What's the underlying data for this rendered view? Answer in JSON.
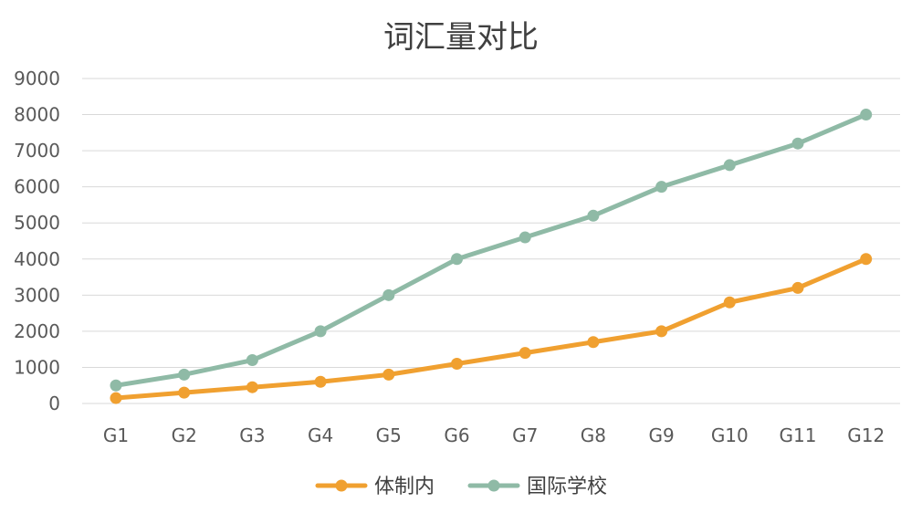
{
  "chart_data": {
    "type": "line",
    "title": "词汇量对比",
    "xlabel": "",
    "ylabel": "",
    "categories": [
      "G1",
      "G2",
      "G3",
      "G4",
      "G5",
      "G6",
      "G7",
      "G8",
      "G9",
      "G10",
      "G11",
      "G12"
    ],
    "y_ticks": [
      "0",
      "1000",
      "2000",
      "3000",
      "4000",
      "5000",
      "6000",
      "7000",
      "8000",
      "9000"
    ],
    "ylim": [
      0,
      9000
    ],
    "grid": true,
    "legend_position": "bottom",
    "series": [
      {
        "name": "体制内",
        "color": "#f0a030",
        "values": [
          150,
          300,
          450,
          600,
          800,
          1100,
          1400,
          1700,
          2000,
          2800,
          3200,
          4000
        ]
      },
      {
        "name": "国际学校",
        "color": "#8fbaa6",
        "values": [
          500,
          800,
          1200,
          2000,
          3000,
          4000,
          4600,
          5200,
          6000,
          6600,
          7200,
          8000
        ]
      }
    ]
  }
}
